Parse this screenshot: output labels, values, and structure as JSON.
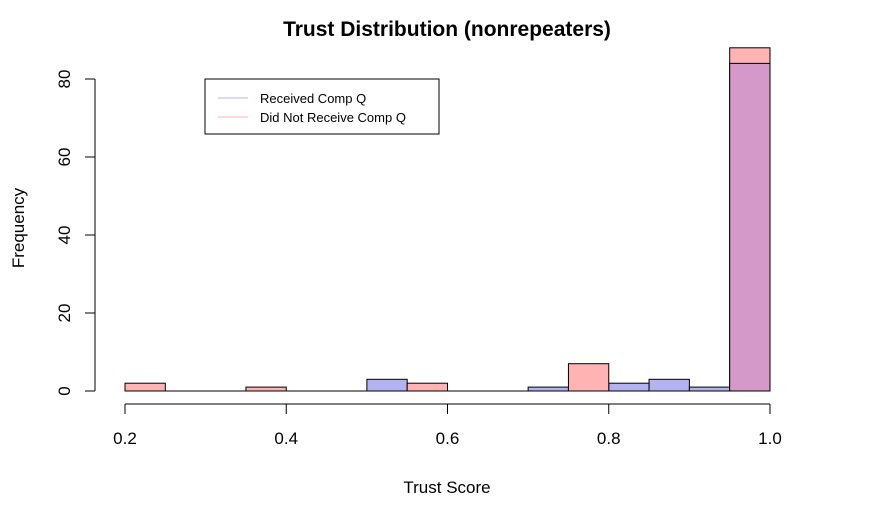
{
  "chart_data": {
    "type": "bar",
    "title": "Trust Distribution (nonrepeaters)",
    "xlabel": "Trust Score",
    "ylabel": "Frequency",
    "xlim": [
      0.2,
      1.0
    ],
    "ylim": [
      0,
      88
    ],
    "xticks": [
      "0.2",
      "0.4",
      "0.6",
      "0.8",
      "1.0"
    ],
    "yticks": [
      "0",
      "20",
      "40",
      "60",
      "80"
    ],
    "legend_position": "top-left",
    "series": [
      {
        "name": "Received Comp Q",
        "color": "#b3b3f2",
        "bins": [
          {
            "x0": 0.2,
            "x1": 0.25,
            "count": 0
          },
          {
            "x0": 0.25,
            "x1": 0.3,
            "count": 0
          },
          {
            "x0": 0.3,
            "x1": 0.35,
            "count": 0
          },
          {
            "x0": 0.35,
            "x1": 0.4,
            "count": 0
          },
          {
            "x0": 0.4,
            "x1": 0.45,
            "count": 0
          },
          {
            "x0": 0.45,
            "x1": 0.5,
            "count": 0
          },
          {
            "x0": 0.5,
            "x1": 0.55,
            "count": 3
          },
          {
            "x0": 0.55,
            "x1": 0.6,
            "count": 0
          },
          {
            "x0": 0.6,
            "x1": 0.65,
            "count": 0
          },
          {
            "x0": 0.65,
            "x1": 0.7,
            "count": 0
          },
          {
            "x0": 0.7,
            "x1": 0.75,
            "count": 1
          },
          {
            "x0": 0.75,
            "x1": 0.8,
            "count": 0
          },
          {
            "x0": 0.8,
            "x1": 0.85,
            "count": 2
          },
          {
            "x0": 0.85,
            "x1": 0.9,
            "count": 3
          },
          {
            "x0": 0.9,
            "x1": 0.95,
            "count": 1
          },
          {
            "x0": 0.95,
            "x1": 1.0,
            "count": 84
          }
        ]
      },
      {
        "name": "Did Not Receive Comp Q",
        "color": "#ffb3b3",
        "bins": [
          {
            "x0": 0.2,
            "x1": 0.25,
            "count": 2
          },
          {
            "x0": 0.25,
            "x1": 0.3,
            "count": 0
          },
          {
            "x0": 0.3,
            "x1": 0.35,
            "count": 0
          },
          {
            "x0": 0.35,
            "x1": 0.4,
            "count": 1
          },
          {
            "x0": 0.4,
            "x1": 0.45,
            "count": 0
          },
          {
            "x0": 0.45,
            "x1": 0.5,
            "count": 0
          },
          {
            "x0": 0.5,
            "x1": 0.55,
            "count": 0
          },
          {
            "x0": 0.55,
            "x1": 0.6,
            "count": 2
          },
          {
            "x0": 0.6,
            "x1": 0.65,
            "count": 0
          },
          {
            "x0": 0.65,
            "x1": 0.7,
            "count": 0
          },
          {
            "x0": 0.7,
            "x1": 0.75,
            "count": 0
          },
          {
            "x0": 0.75,
            "x1": 0.8,
            "count": 7
          },
          {
            "x0": 0.8,
            "x1": 0.85,
            "count": 0
          },
          {
            "x0": 0.85,
            "x1": 0.9,
            "count": 0
          },
          {
            "x0": 0.9,
            "x1": 0.95,
            "count": 0
          },
          {
            "x0": 0.95,
            "x1": 1.0,
            "count": 88
          }
        ]
      }
    ],
    "overlap_color": "#d499c8"
  }
}
